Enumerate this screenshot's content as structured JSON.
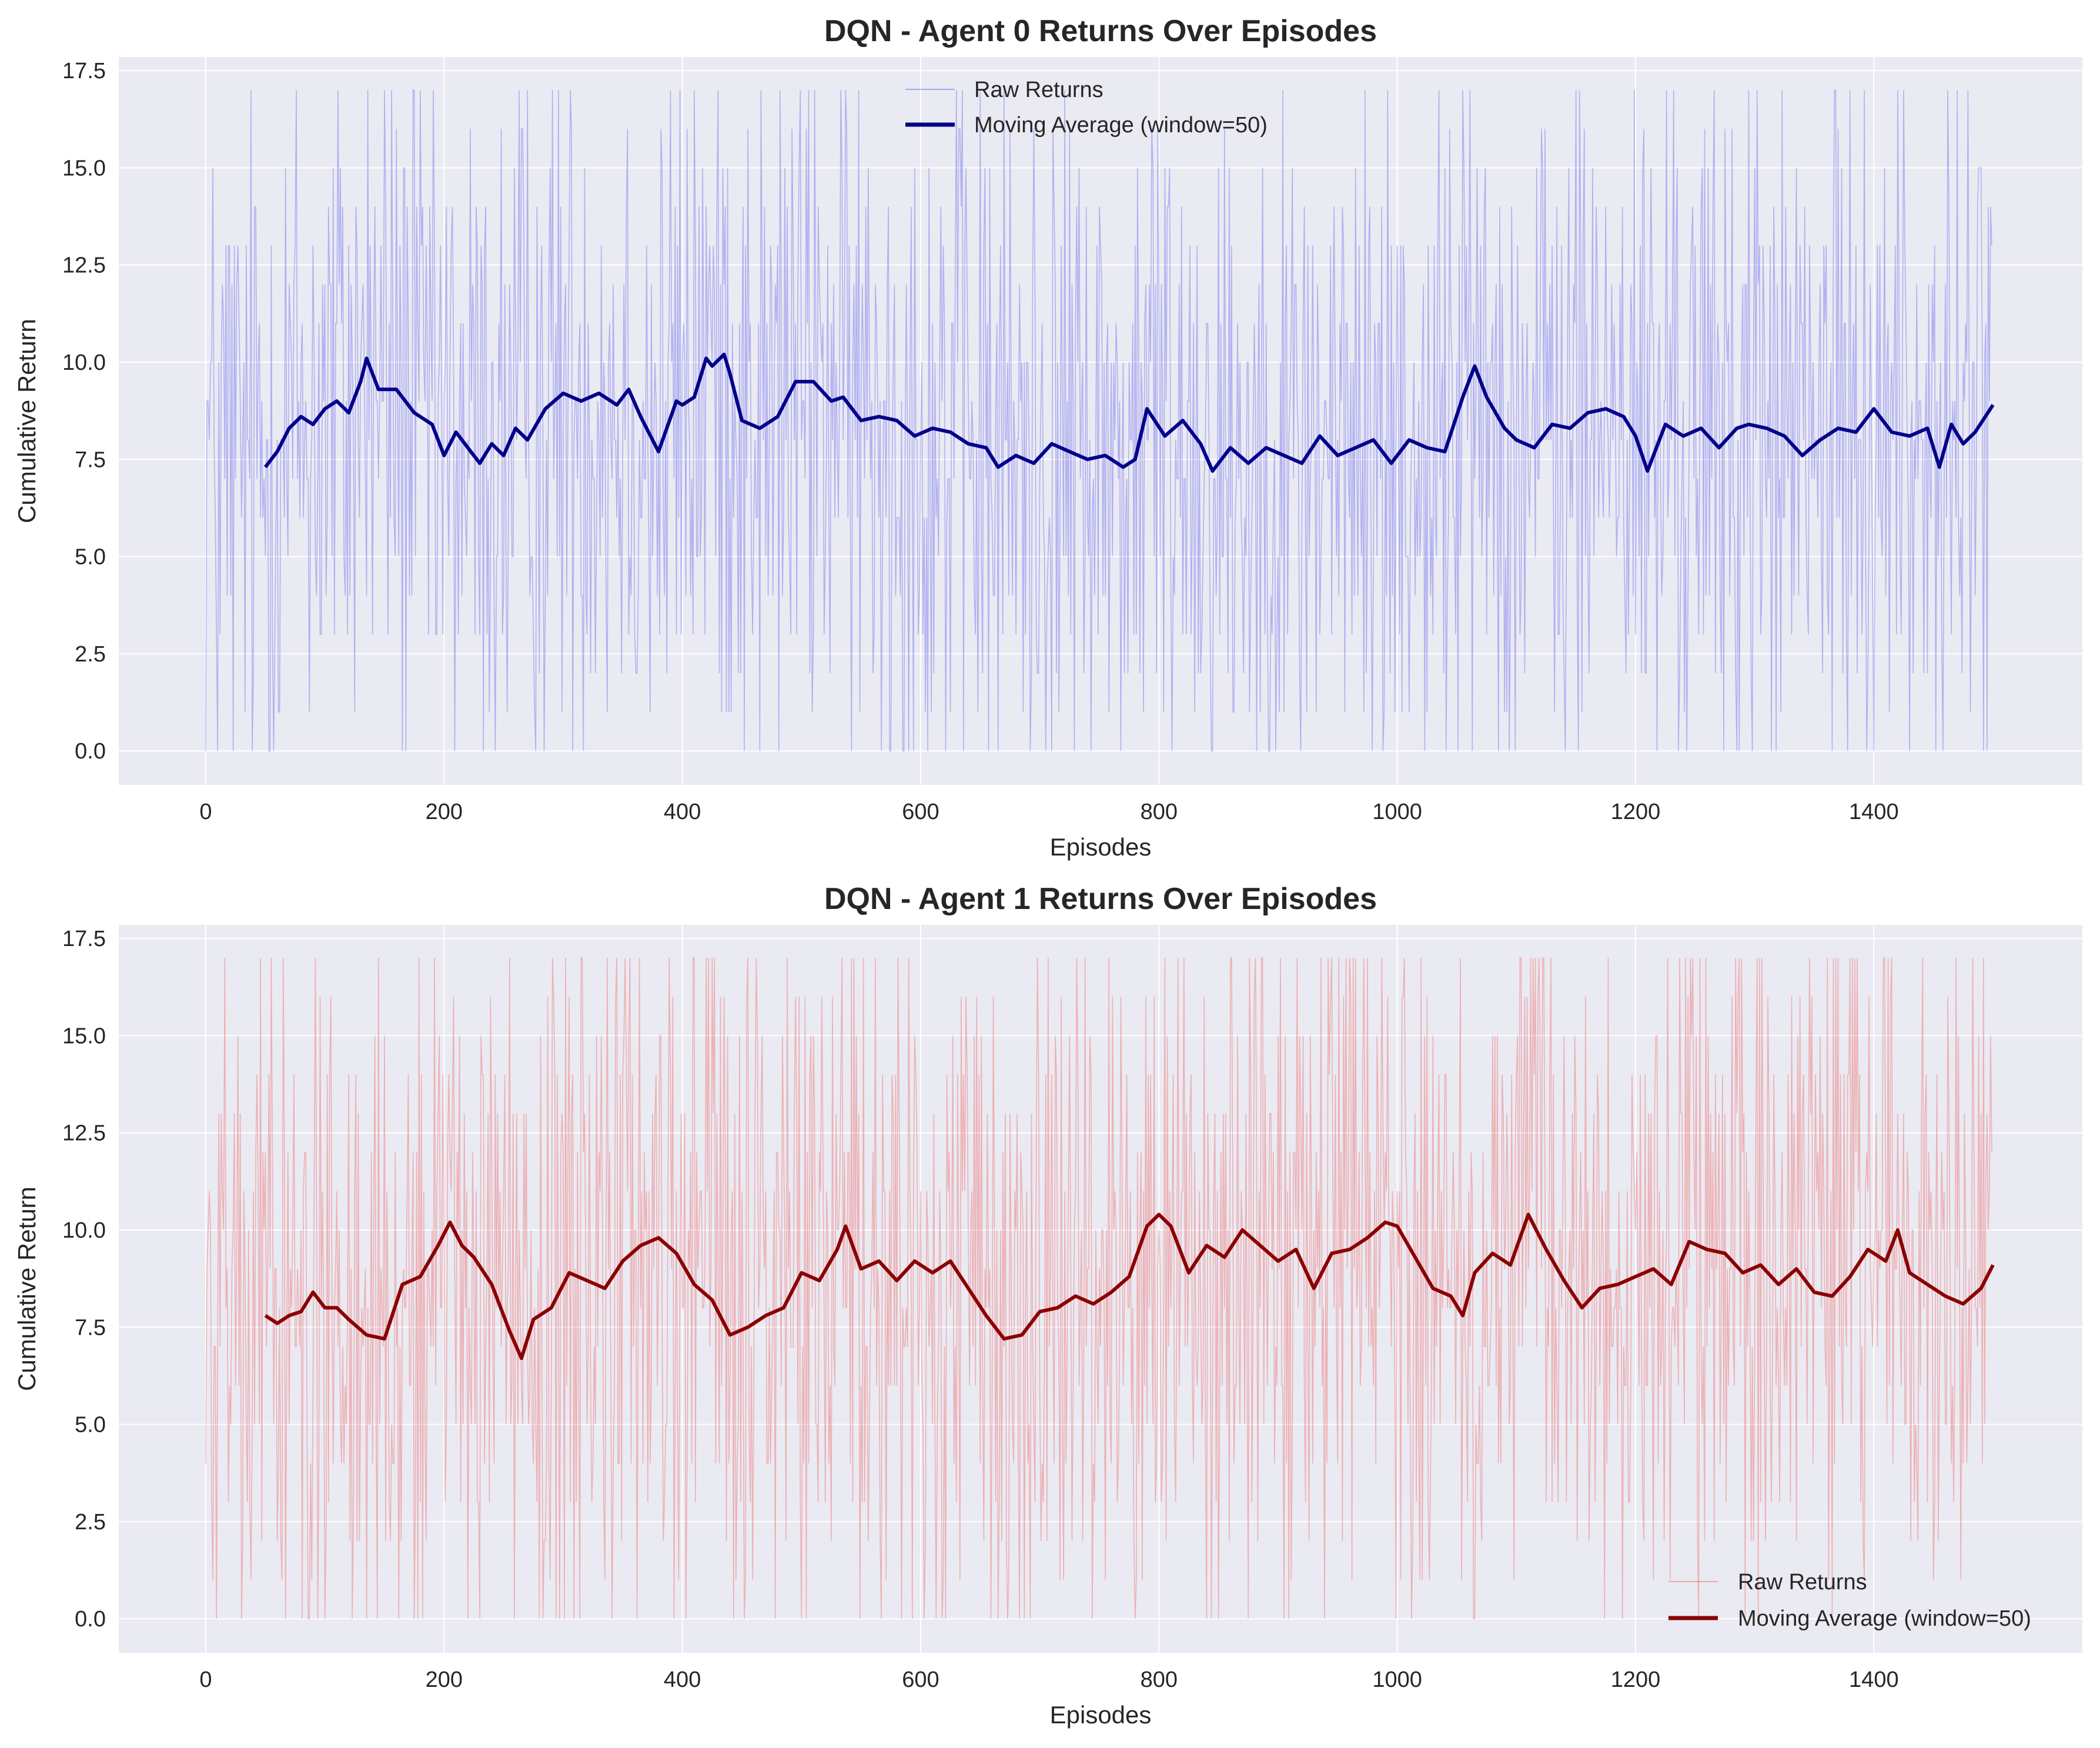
{
  "chart_data": [
    {
      "type": "line",
      "title": "DQN - Agent 0 Returns Over Episodes",
      "xlabel": "Episodes",
      "ylabel": "Cumulative Return",
      "xlim": [
        -73,
        1575
      ],
      "ylim": [
        -0.875,
        17.85
      ],
      "xticks": [
        0,
        200,
        400,
        600,
        800,
        1000,
        1200,
        1400
      ],
      "xtick_labels": [
        "0",
        "200",
        "400",
        "600",
        "800",
        "1000",
        "1200",
        "1400"
      ],
      "yticks": [
        0,
        2.5,
        5,
        7.5,
        10,
        12.5,
        15,
        17.5
      ],
      "ytick_labels": [
        "0.0",
        "2.5",
        "5.0",
        "7.5",
        "10.0",
        "12.5",
        "15.0",
        "17.5"
      ],
      "grid": true,
      "legend_position": "top-center",
      "episodes": 1500,
      "return_range": [
        0,
        17
      ],
      "series": [
        {
          "name": "Raw Returns",
          "color": "#5555ee",
          "style": "thin-transparent"
        },
        {
          "name": "Moving Average (window=50)",
          "color": "#00008b",
          "window": 50,
          "x": [
            50,
            60,
            70,
            80,
            90,
            100,
            110,
            120,
            130,
            135,
            145,
            160,
            175,
            190,
            200,
            210,
            220,
            230,
            240,
            250,
            260,
            270,
            285,
            300,
            315,
            330,
            345,
            355,
            365,
            380,
            395,
            400,
            410,
            420,
            425,
            435,
            440,
            450,
            465,
            480,
            495,
            510,
            525,
            535,
            550,
            565,
            580,
            595,
            610,
            625,
            640,
            655,
            665,
            680,
            695,
            710,
            725,
            740,
            755,
            770,
            780,
            790,
            805,
            820,
            835,
            845,
            860,
            875,
            890,
            905,
            920,
            935,
            950,
            965,
            980,
            995,
            1010,
            1025,
            1040,
            1055,
            1065,
            1075,
            1090,
            1100,
            1115,
            1130,
            1145,
            1160,
            1175,
            1190,
            1200,
            1210,
            1225,
            1240,
            1255,
            1270,
            1285,
            1295,
            1310,
            1325,
            1340,
            1355,
            1370,
            1385,
            1400,
            1415,
            1430,
            1445,
            1455,
            1465,
            1475,
            1485,
            1500
          ],
          "values": [
            7.3,
            7.7,
            8.3,
            8.6,
            8.4,
            8.8,
            9.0,
            8.7,
            9.5,
            10.1,
            9.3,
            9.3,
            8.7,
            8.4,
            7.6,
            8.2,
            7.8,
            7.4,
            7.9,
            7.6,
            8.3,
            8.0,
            8.8,
            9.2,
            9.0,
            9.2,
            8.9,
            9.3,
            8.6,
            7.7,
            9.0,
            8.9,
            9.1,
            10.1,
            9.9,
            10.2,
            9.7,
            8.5,
            8.3,
            8.6,
            9.5,
            9.5,
            9.0,
            9.1,
            8.5,
            8.6,
            8.5,
            8.1,
            8.3,
            8.2,
            7.9,
            7.8,
            7.3,
            7.6,
            7.4,
            7.9,
            7.7,
            7.5,
            7.6,
            7.3,
            7.5,
            8.8,
            8.1,
            8.5,
            7.9,
            7.2,
            7.8,
            7.4,
            7.8,
            7.6,
            7.4,
            8.1,
            7.6,
            7.8,
            8.0,
            7.4,
            8.0,
            7.8,
            7.7,
            9.1,
            9.9,
            9.1,
            8.3,
            8.0,
            7.8,
            8.4,
            8.3,
            8.7,
            8.8,
            8.6,
            8.1,
            7.2,
            8.4,
            8.1,
            8.3,
            7.8,
            8.3,
            8.4,
            8.3,
            8.1,
            7.6,
            8.0,
            8.3,
            8.2,
            8.8,
            8.2,
            8.1,
            8.3,
            7.3,
            8.4,
            7.9,
            8.2,
            8.9
          ]
        }
      ]
    },
    {
      "type": "line",
      "title": "DQN - Agent 1 Returns Over Episodes",
      "xlabel": "Episodes",
      "ylabel": "Cumulative Return",
      "xlim": [
        -73,
        1575
      ],
      "ylim": [
        -0.875,
        17.85
      ],
      "xticks": [
        0,
        200,
        400,
        600,
        800,
        1000,
        1200,
        1400
      ],
      "xtick_labels": [
        "0",
        "200",
        "400",
        "600",
        "800",
        "1000",
        "1200",
        "1400"
      ],
      "yticks": [
        0,
        2.5,
        5,
        7.5,
        10,
        12.5,
        15,
        17.5
      ],
      "ytick_labels": [
        "0.0",
        "2.5",
        "5.0",
        "7.5",
        "10.0",
        "12.5",
        "15.0",
        "17.5"
      ],
      "grid": true,
      "legend_position": "bottom-right",
      "episodes": 1500,
      "return_range": [
        0,
        17
      ],
      "series": [
        {
          "name": "Raw Returns",
          "color": "#ee5555",
          "style": "thin-transparent"
        },
        {
          "name": "Moving Average (window=50)",
          "color": "#8b0000",
          "window": 50,
          "x": [
            50,
            60,
            70,
            80,
            90,
            100,
            110,
            120,
            135,
            150,
            165,
            180,
            195,
            205,
            215,
            225,
            240,
            255,
            265,
            275,
            290,
            305,
            320,
            335,
            350,
            365,
            380,
            395,
            410,
            425,
            440,
            455,
            470,
            485,
            500,
            515,
            530,
            537,
            550,
            565,
            580,
            595,
            610,
            625,
            640,
            655,
            670,
            685,
            700,
            715,
            730,
            745,
            760,
            775,
            790,
            800,
            810,
            825,
            840,
            855,
            870,
            885,
            900,
            915,
            930,
            945,
            960,
            975,
            990,
            1000,
            1015,
            1030,
            1045,
            1055,
            1065,
            1080,
            1095,
            1110,
            1125,
            1140,
            1155,
            1170,
            1185,
            1200,
            1215,
            1230,
            1245,
            1260,
            1275,
            1290,
            1305,
            1320,
            1335,
            1350,
            1365,
            1380,
            1395,
            1410,
            1420,
            1430,
            1445,
            1460,
            1475,
            1490,
            1500
          ],
          "values": [
            7.8,
            7.6,
            7.8,
            7.9,
            8.4,
            8.0,
            8.0,
            7.7,
            7.3,
            7.2,
            8.6,
            8.8,
            9.6,
            10.2,
            9.6,
            9.3,
            8.6,
            7.4,
            6.7,
            7.7,
            8.0,
            8.9,
            8.7,
            8.5,
            9.2,
            9.6,
            9.8,
            9.4,
            8.6,
            8.2,
            7.3,
            7.5,
            7.8,
            8.0,
            8.9,
            8.7,
            9.5,
            10.1,
            9.0,
            9.2,
            8.7,
            9.2,
            8.9,
            9.2,
            8.5,
            7.8,
            7.2,
            7.3,
            7.9,
            8.0,
            8.3,
            8.1,
            8.4,
            8.8,
            10.1,
            10.4,
            10.1,
            8.9,
            9.6,
            9.3,
            10.0,
            9.6,
            9.2,
            9.5,
            8.5,
            9.4,
            9.5,
            9.8,
            10.2,
            10.1,
            9.3,
            8.5,
            8.3,
            7.8,
            8.9,
            9.4,
            9.1,
            10.4,
            9.5,
            8.7,
            8.0,
            8.5,
            8.6,
            8.8,
            9.0,
            8.6,
            9.7,
            9.5,
            9.4,
            8.9,
            9.1,
            8.6,
            9.0,
            8.4,
            8.3,
            8.8,
            9.5,
            9.2,
            10.0,
            8.9,
            8.6,
            8.3,
            8.1,
            8.5,
            9.1
          ]
        }
      ]
    }
  ]
}
